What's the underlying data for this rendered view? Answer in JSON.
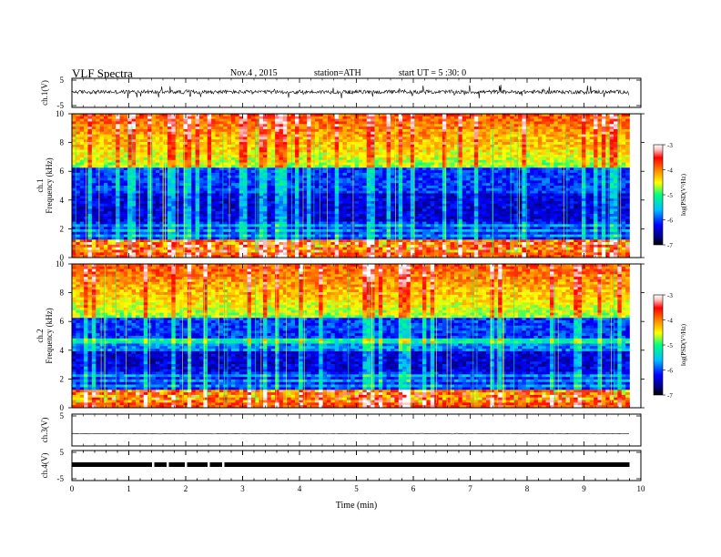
{
  "header": {
    "title": "VLF Spectra",
    "date": "Nov.4  , 2015",
    "station": "station=ATH",
    "start": "start  UT  =   5  :30: 0"
  },
  "chart_data": {
    "type": "heatmap",
    "title": "VLF Spectra",
    "xlabel": "Time  (min)",
    "xlim": [
      0,
      10
    ],
    "x_ticks": [
      "0",
      "1",
      "2",
      "3",
      "4",
      "5",
      "6",
      "7",
      "8",
      "9",
      "10"
    ],
    "data_end_min": 9.8,
    "panels": [
      {
        "kind": "waveform",
        "ylabel": "ch.1(V)",
        "ylim": [
          -5,
          5
        ],
        "y_ticks": [
          "5",
          "-5"
        ],
        "amplitude": "noisy ~±1 V with spikes"
      },
      {
        "kind": "spectrogram",
        "ylabel_channel": "ch.1",
        "ylabel": "Frequency  (kHz)",
        "ylim": [
          0,
          10
        ],
        "y_ticks": [
          "0",
          "2",
          "4",
          "6",
          "8",
          "10"
        ],
        "colorbar": {
          "label": "log(PSD(V²/Hz)",
          "range": [
            -7,
            -3
          ],
          "ticks": [
            "-3",
            "-4",
            "-5",
            "-6",
            "-7"
          ]
        }
      },
      {
        "kind": "spectrogram",
        "ylabel_channel": "ch.2",
        "ylabel": "Frequency  (kHz)",
        "ylim": [
          0,
          10
        ],
        "y_ticks": [
          "0",
          "2",
          "4",
          "6",
          "8",
          "10"
        ],
        "colorbar": {
          "label": "log(PSD(V²/Hz)",
          "range": [
            -7,
            -3
          ],
          "ticks": [
            "-3",
            "-4",
            "-5",
            "-6",
            "-7"
          ]
        }
      },
      {
        "kind": "waveform",
        "ylabel": "ch.3(V)",
        "ylim": [
          -5,
          5
        ],
        "y_ticks": [
          "5"
        ],
        "amplitude": "flat ~0 V"
      },
      {
        "kind": "waveform",
        "ylabel": "ch.4(V)",
        "ylim": [
          -5,
          5
        ],
        "y_ticks": [
          "5",
          "-5"
        ],
        "amplitude": "thick band ~0 V with small gaps"
      }
    ],
    "colors": {
      "colormap": [
        "#000000",
        "#000080",
        "#0000ff",
        "#00c0ff",
        "#00ff80",
        "#ffff00",
        "#ff8000",
        "#ff0000",
        "#ffc0c0",
        "#ffffff"
      ]
    }
  }
}
